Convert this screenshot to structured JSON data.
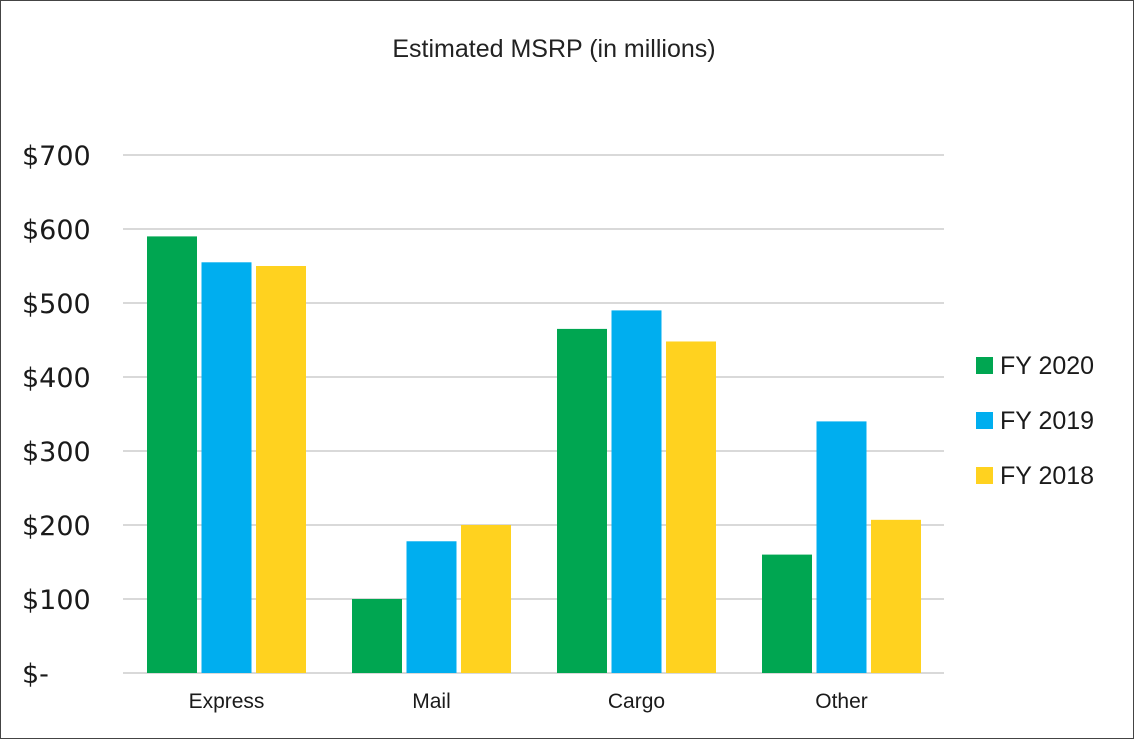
{
  "chart_data": {
    "type": "bar",
    "title": "Estimated MSRP (in millions)",
    "xlabel": "",
    "ylabel": "",
    "categories": [
      "Express",
      "Mail",
      "Cargo",
      "Other"
    ],
    "series": [
      {
        "name": "FY 2020",
        "color": "#00A651",
        "values": [
          590,
          100,
          465,
          160
        ]
      },
      {
        "name": "FY 2019",
        "color": "#00AEEF",
        "values": [
          555,
          178,
          490,
          340
        ]
      },
      {
        "name": "FY 2018",
        "color": "#FFD21F",
        "values": [
          550,
          200,
          448,
          207
        ]
      }
    ],
    "ylim": [
      0,
      700
    ],
    "yticks": [
      0,
      100,
      200,
      300,
      400,
      500,
      600,
      700
    ],
    "ytick_labels": [
      "$-",
      "$100",
      "$200",
      "$300",
      "$400",
      "$500",
      "$600",
      "$700"
    ],
    "grid": true,
    "legend_position": "right"
  }
}
